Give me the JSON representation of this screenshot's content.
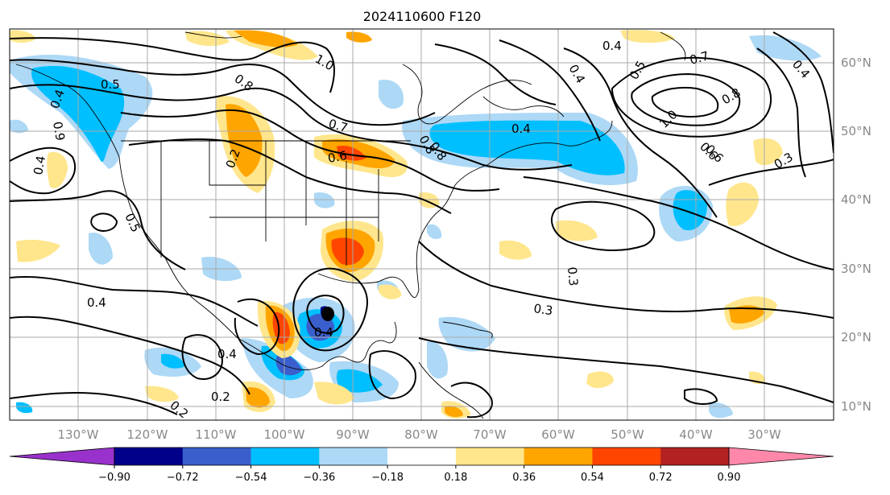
{
  "title": "2024110600 F120",
  "map": {
    "lon_labels": [
      "130°W",
      "120°W",
      "110°W",
      "100°W",
      "90°W",
      "80°W",
      "70°W",
      "60°W",
      "50°W",
      "40°W",
      "30°W"
    ],
    "lat_labels": [
      "60°N",
      "50°N",
      "40°N",
      "30°N",
      "20°N",
      "10°N"
    ],
    "contour_labels": [
      "1.0",
      "0.5",
      "0.9",
      "0.4",
      "0.8",
      "0.7",
      "0.2",
      "0.6",
      "0.5",
      "0.4",
      "0.3",
      "0.4",
      "0.4",
      "0.3",
      "0.4",
      "0.2",
      "0.2",
      "0.4",
      "0.5",
      "0.7",
      "0.8",
      "1.0",
      "0.4",
      "0.8",
      "0.6",
      "0.3",
      "0.4",
      "0.4",
      "0.8",
      "0.6"
    ]
  },
  "colorbar": {
    "labels": [
      "−0.90",
      "−0.72",
      "−0.54",
      "−0.36",
      "−0.18",
      "0.18",
      "0.36",
      "0.54",
      "0.72",
      "0.90"
    ],
    "colors": [
      "#9932cc",
      "#00008b",
      "#3a5fcd",
      "#00bfff",
      "#add8f6",
      "#ffffff",
      "#ffe68c",
      "#ffa500",
      "#ff4500",
      "#b22222",
      "#ff88aa"
    ]
  }
}
